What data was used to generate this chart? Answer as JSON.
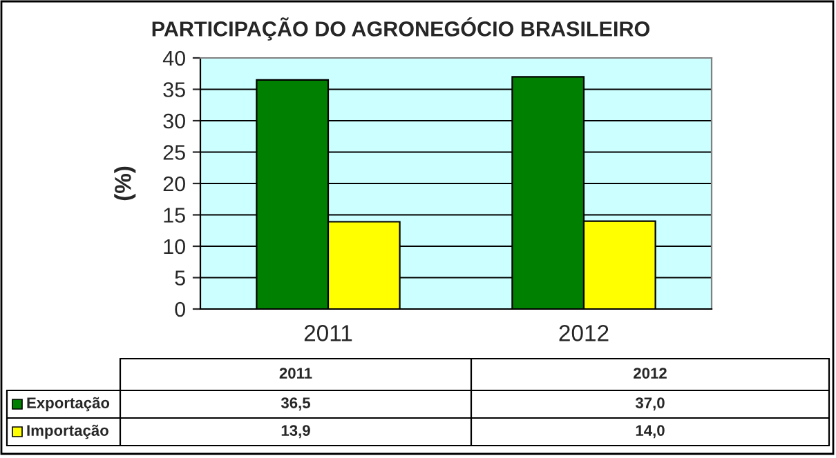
{
  "chart_data": {
    "type": "bar",
    "title": "PARTICIPAÇÃO DO AGRONEGÓCIO BRASILEIRO",
    "ylabel": "(%)",
    "categories": [
      "2011",
      "2012"
    ],
    "series": [
      {
        "name": "Exportação",
        "color": "#008000",
        "values": [
          36.5,
          37.0
        ],
        "value_labels": [
          "36,5",
          "37,0"
        ]
      },
      {
        "name": "Importação",
        "color": "#ffff00",
        "values": [
          13.9,
          14.0
        ],
        "value_labels": [
          "13,9",
          "14,0"
        ]
      }
    ],
    "ylim": [
      0,
      40
    ],
    "yticks": [
      0,
      5,
      10,
      15,
      20,
      25,
      30,
      35,
      40
    ],
    "grid": "y",
    "legend": "bottom"
  }
}
